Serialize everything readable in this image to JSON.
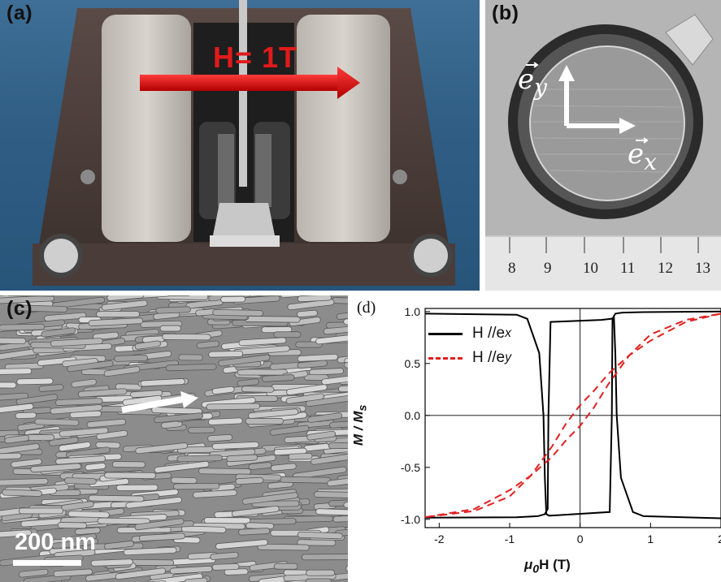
{
  "panels": {
    "a": {
      "label": "(a)",
      "field_annotation": "H= 1T"
    },
    "b": {
      "label": "(b)",
      "vector_y": "e",
      "vector_y_sub": "y",
      "vector_x": "e",
      "vector_x_sub": "x",
      "ruler_numbers": [
        "8",
        "9",
        "10",
        "11",
        "12",
        "13"
      ]
    },
    "c": {
      "label": "(c)",
      "scale_bar": "200 nm"
    },
    "d": {
      "label": "(d)",
      "x_axis_label": "μ",
      "x_axis_label_sub": "0",
      "x_axis_label_rest": "H (T)",
      "y_axis_label": "M / M",
      "y_axis_label_sub": "s",
      "legend": [
        {
          "text": "H //e",
          "sub": "x",
          "color": "#000000",
          "style": "solid"
        },
        {
          "text": "H //e",
          "sub": "y",
          "color": "#e02020",
          "style": "dashed"
        }
      ]
    }
  },
  "chart_data": {
    "type": "line",
    "xlim": [
      -2.2,
      2.0
    ],
    "ylim": [
      -1.08,
      1.03
    ],
    "x_ticks": [
      "-2",
      "-1",
      "0",
      "1",
      "2"
    ],
    "y_ticks": [
      "1.0",
      "0.5",
      "0.0",
      "-0.5",
      "-1.0"
    ],
    "grid": false,
    "legend_position": "top-left",
    "series": [
      {
        "name": "H //e_x",
        "color": "#000000",
        "dash": false,
        "branches": [
          {
            "x": [
              2.0,
              0.9,
              0.6,
              0.5,
              0.46,
              0.45,
              0.42,
              -0.3,
              -0.44,
              -0.48,
              -0.5,
              -0.52,
              -0.58,
              -0.75,
              -0.9,
              -2.2
            ],
            "y": [
              1.0,
              0.995,
              0.99,
              0.98,
              0.93,
              0.0,
              -0.93,
              -0.96,
              -0.965,
              -0.95,
              -0.6,
              0.0,
              0.6,
              0.93,
              0.97,
              0.98
            ]
          },
          {
            "x": [
              -2.2,
              -0.9,
              -0.6,
              -0.5,
              -0.46,
              -0.45,
              -0.42,
              0.3,
              0.44,
              0.48,
              0.5,
              0.52,
              0.58,
              0.75,
              0.9,
              2.0
            ],
            "y": [
              -0.985,
              -0.98,
              -0.97,
              -0.95,
              -0.9,
              0.0,
              0.9,
              0.92,
              0.93,
              0.94,
              0.6,
              0.0,
              -0.6,
              -0.93,
              -0.97,
              -0.99
            ]
          }
        ]
      },
      {
        "name": "H //e_y",
        "color": "#e02020",
        "dash": true,
        "branches": [
          {
            "x": [
              2.0,
              1.5,
              1.0,
              0.7,
              0.4,
              0.2,
              0.0,
              -0.2,
              -0.4,
              -0.7,
              -1.0,
              -1.5,
              -2.2
            ],
            "y": [
              0.98,
              0.9,
              0.72,
              0.58,
              0.4,
              0.24,
              0.1,
              -0.08,
              -0.3,
              -0.58,
              -0.78,
              -0.92,
              -0.98
            ]
          },
          {
            "x": [
              -2.2,
              -1.5,
              -1.0,
              -0.7,
              -0.4,
              -0.2,
              0.0,
              0.2,
              0.4,
              0.7,
              1.0,
              1.5,
              2.0
            ],
            "y": [
              -0.98,
              -0.9,
              -0.72,
              -0.58,
              -0.4,
              -0.24,
              -0.1,
              0.08,
              0.3,
              0.58,
              0.78,
              0.92,
              0.98
            ]
          }
        ]
      }
    ]
  }
}
